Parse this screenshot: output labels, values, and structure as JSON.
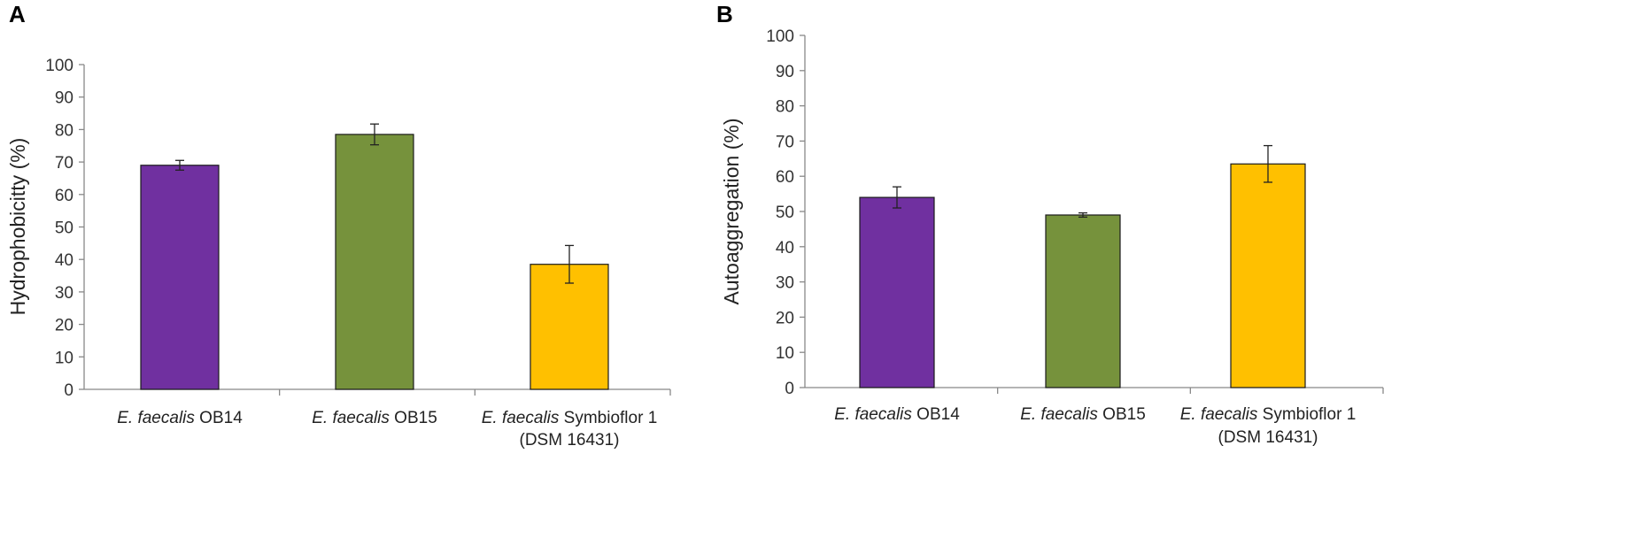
{
  "chart_data": [
    {
      "type": "bar",
      "panel_label": "A",
      "ylabel": "Hydrophobicitty (%)",
      "xlabel": "",
      "ylim": [
        0,
        100
      ],
      "yticks": [
        0,
        10,
        20,
        30,
        40,
        50,
        60,
        70,
        80,
        90,
        100
      ],
      "categories": [
        {
          "italic": "E. faecalis",
          "rest": " OB14",
          "line2": ""
        },
        {
          "italic": "E. faecalis",
          "rest": " OB15",
          "line2": ""
        },
        {
          "italic": "E. faecalis",
          "rest": " Symbioflor 1",
          "line2": "(DSM 16431)"
        }
      ],
      "values": [
        69,
        78.5,
        38.5
      ],
      "errors": [
        1.5,
        3.2,
        5.8
      ],
      "colors": [
        "#7030A0",
        "#76923C",
        "#FFC000"
      ]
    },
    {
      "type": "bar",
      "panel_label": "B",
      "ylabel": "Autoaggregation (%)",
      "xlabel": "",
      "ylim": [
        0,
        100
      ],
      "yticks": [
        0,
        10,
        20,
        30,
        40,
        50,
        60,
        70,
        80,
        90,
        100
      ],
      "categories": [
        {
          "italic": "E. faecalis",
          "rest": " OB14",
          "line2": ""
        },
        {
          "italic": "E. faecalis",
          "rest": " OB15",
          "line2": ""
        },
        {
          "italic": "E. faecalis",
          "rest": " Symbioflor 1",
          "line2": "(DSM 16431)"
        }
      ],
      "values": [
        54,
        49,
        63.5
      ],
      "errors": [
        3,
        0.6,
        5.2
      ],
      "colors": [
        "#7030A0",
        "#76923C",
        "#FFC000"
      ]
    }
  ]
}
